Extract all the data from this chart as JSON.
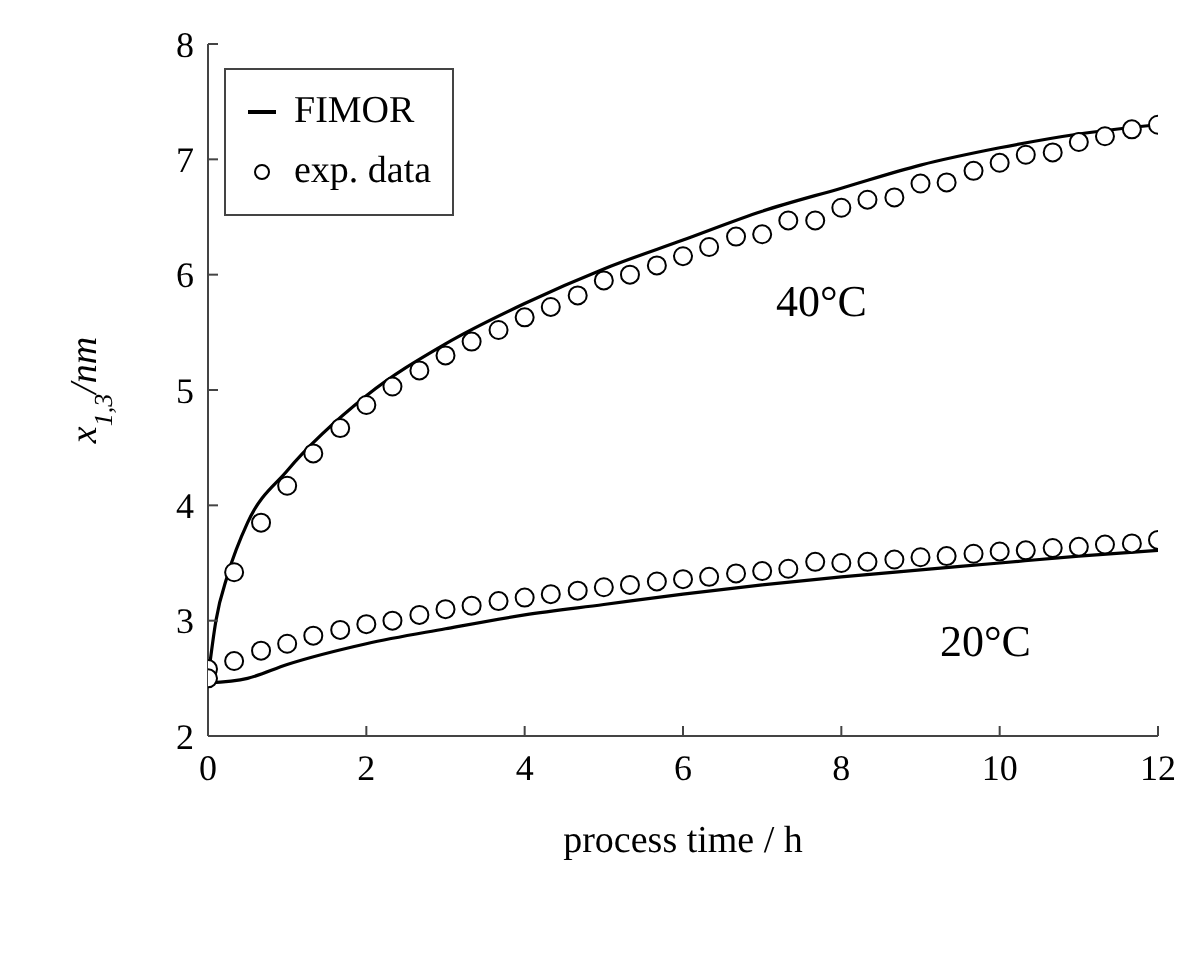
{
  "chart_data": {
    "type": "line",
    "xlabel": "process time / h",
    "ylabel": "x$_{1,3}$/nm",
    "xlim": [
      0,
      12
    ],
    "ylim": [
      2,
      8
    ],
    "xticks": [
      0,
      2,
      4,
      6,
      8,
      10,
      12
    ],
    "yticks": [
      2,
      3,
      4,
      5,
      6,
      7,
      8
    ],
    "grid": false,
    "legend": "top left",
    "line_style": "solid",
    "series": [
      {
        "name": "FIMOR",
        "color": "#000000",
        "marker": "none",
        "x": [
          0,
          0.1,
          0.25,
          0.5,
          1,
          2,
          3,
          4,
          5,
          6,
          7,
          8,
          9,
          10,
          11,
          12
        ],
        "values": [
          2.5,
          3.0,
          3.4,
          3.85,
          4.3,
          4.95,
          5.4,
          5.75,
          6.05,
          6.3,
          6.55,
          6.75,
          6.95,
          7.1,
          7.22,
          7.3
        ]
      },
      {
        "color": "#000000",
        "marker": "none",
        "x": [
          0,
          0.5,
          1,
          2,
          3,
          4,
          5,
          6,
          7,
          8,
          9,
          10,
          11,
          12
        ],
        "values": [
          2.46,
          2.5,
          2.62,
          2.8,
          2.93,
          3.05,
          3.14,
          3.23,
          3.31,
          3.38,
          3.44,
          3.5,
          3.56,
          3.61
        ]
      },
      {
        "name": "exp. data",
        "type": "scatter",
        "color": "#000000",
        "marker": "circle",
        "x": [
          0,
          0.33,
          0.67,
          1,
          1.33,
          1.67,
          2,
          2.33,
          2.67,
          3,
          3.33,
          3.67,
          4,
          4.33,
          4.67,
          5,
          5.33,
          5.67,
          6,
          6.33,
          6.67,
          7,
          7.33,
          7.67,
          8,
          8.33,
          8.67,
          9,
          9.33,
          9.67,
          10,
          10.33,
          10.67,
          11,
          11.33,
          11.67,
          12
        ],
        "values": [
          2.58,
          3.42,
          3.85,
          4.17,
          4.45,
          4.67,
          4.87,
          5.03,
          5.17,
          5.3,
          5.42,
          5.52,
          5.63,
          5.72,
          5.82,
          5.95,
          6.0,
          6.08,
          6.16,
          6.24,
          6.33,
          6.35,
          6.47,
          6.47,
          6.58,
          6.65,
          6.67,
          6.79,
          6.8,
          6.9,
          6.97,
          7.04,
          7.06,
          7.15,
          7.2,
          7.26,
          7.3
        ]
      },
      {
        "type": "scatter",
        "color": "#000000",
        "marker": "circle",
        "x": [
          0,
          0.33,
          0.67,
          1,
          1.33,
          1.67,
          2,
          2.33,
          2.67,
          3,
          3.33,
          3.67,
          4,
          4.33,
          4.67,
          5,
          5.33,
          5.67,
          6,
          6.33,
          6.67,
          7,
          7.33,
          7.67,
          8,
          8.33,
          8.67,
          9,
          9.33,
          9.67,
          10,
          10.33,
          10.67,
          11,
          11.33,
          11.67,
          12
        ],
        "values": [
          2.5,
          2.65,
          2.74,
          2.8,
          2.87,
          2.92,
          2.97,
          3.0,
          3.05,
          3.1,
          3.13,
          3.17,
          3.2,
          3.23,
          3.26,
          3.29,
          3.31,
          3.34,
          3.36,
          3.38,
          3.41,
          3.43,
          3.45,
          3.51,
          3.5,
          3.51,
          3.53,
          3.55,
          3.56,
          3.58,
          3.6,
          3.61,
          3.63,
          3.64,
          3.66,
          3.67,
          3.7
        ]
      }
    ],
    "annotations": [
      "40°C",
      "20°C"
    ]
  }
}
